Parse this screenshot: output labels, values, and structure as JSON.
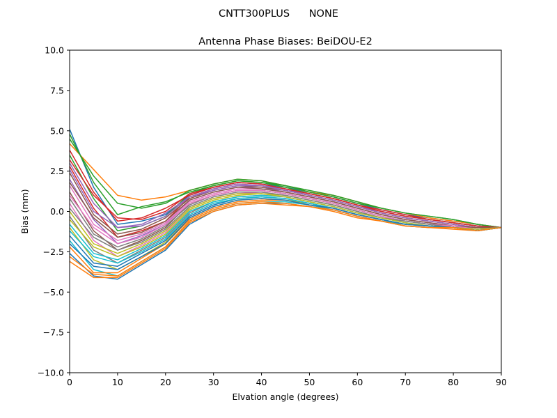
{
  "figure": {
    "suptitle": "CNTT300PLUS      NONE"
  },
  "chart_data": {
    "type": "line",
    "title": "Antenna Phase Biases: BeiDOU-E2",
    "xlabel": "Elvation angle (degrees)",
    "ylabel": "Bias (mm)",
    "xlim": [
      0,
      90
    ],
    "ylim": [
      -10,
      10
    ],
    "xticks": [
      0,
      10,
      20,
      30,
      40,
      50,
      60,
      70,
      80,
      90
    ],
    "xtick_labels": [
      "0",
      "10",
      "20",
      "30",
      "40",
      "50",
      "60",
      "70",
      "80",
      "90"
    ],
    "yticks": [
      -10,
      -7.5,
      -5,
      -2.5,
      0,
      2.5,
      5,
      7.5,
      10
    ],
    "ytick_labels": [
      "−10.0",
      "−7.5",
      "−5.0",
      "−2.5",
      "0.0",
      "2.5",
      "5.0",
      "7.5",
      "10.0"
    ],
    "grid": false,
    "legend": "none",
    "color_cycle": [
      "#1f77b4",
      "#ff7f0e",
      "#2ca02c",
      "#d62728",
      "#9467bd",
      "#8c564b",
      "#e377c2",
      "#7f7f7f",
      "#bcbd22",
      "#17becf"
    ],
    "x": [
      0,
      5,
      10,
      15,
      20,
      25,
      30,
      35,
      40,
      45,
      50,
      55,
      60,
      65,
      70,
      75,
      80,
      85,
      90
    ],
    "series": [
      {
        "values": [
          5.1,
          1.5,
          -0.8,
          -0.6,
          -0.2,
          1.0,
          1.5,
          1.8,
          1.7,
          1.5,
          1.2,
          0.9,
          0.5,
          0.1,
          -0.2,
          -0.4,
          -0.6,
          -0.8,
          -1.0
        ]
      },
      {
        "values": [
          4.2,
          2.6,
          1.0,
          0.7,
          0.9,
          1.3,
          1.7,
          2.0,
          1.9,
          1.6,
          1.2,
          1.0,
          0.6,
          0.2,
          -0.1,
          -0.4,
          -0.6,
          -0.8,
          -1.0
        ]
      },
      {
        "values": [
          3.5,
          0.8,
          -1.2,
          -0.9,
          -0.3,
          1.1,
          1.6,
          1.9,
          1.8,
          1.5,
          1.1,
          0.8,
          0.4,
          0.0,
          -0.3,
          -0.5,
          -0.7,
          -0.9,
          -1.0
        ]
      },
      {
        "values": [
          2.8,
          0.2,
          -1.6,
          -1.2,
          -0.6,
          0.9,
          1.4,
          1.7,
          1.6,
          1.3,
          1.0,
          0.7,
          0.3,
          -0.1,
          -0.4,
          -0.6,
          -0.8,
          -1.0,
          -1.0
        ]
      },
      {
        "values": [
          2.0,
          -0.5,
          -2.0,
          -1.5,
          -0.8,
          0.7,
          1.2,
          1.5,
          1.5,
          1.2,
          0.9,
          0.6,
          0.2,
          -0.2,
          -0.5,
          -0.7,
          -0.9,
          -1.0,
          -1.0
        ]
      },
      {
        "values": [
          1.2,
          -1.2,
          -2.4,
          -1.8,
          -1.0,
          0.5,
          1.0,
          1.3,
          1.3,
          1.1,
          0.8,
          0.5,
          0.1,
          -0.3,
          -0.6,
          -0.8,
          -0.9,
          -1.1,
          -1.0
        ]
      },
      {
        "values": [
          0.5,
          -1.8,
          -2.8,
          -2.1,
          -1.3,
          0.2,
          0.8,
          1.1,
          1.2,
          1.0,
          0.7,
          0.4,
          0.0,
          -0.4,
          -0.6,
          -0.8,
          -1.0,
          -1.1,
          -1.0
        ]
      },
      {
        "values": [
          -0.3,
          -2.4,
          -3.2,
          -2.4,
          -1.6,
          -0.1,
          0.6,
          0.9,
          1.0,
          0.9,
          0.6,
          0.3,
          -0.1,
          -0.4,
          -0.7,
          -0.9,
          -1.0,
          -1.1,
          -1.0
        ]
      },
      {
        "values": [
          -1.0,
          -3.0,
          -3.6,
          -2.8,
          -1.9,
          -0.4,
          0.3,
          0.7,
          0.8,
          0.7,
          0.5,
          0.2,
          -0.2,
          -0.5,
          -0.8,
          -0.9,
          -1.0,
          -1.2,
          -1.0
        ]
      },
      {
        "values": [
          -1.8,
          -3.6,
          -4.0,
          -3.1,
          -2.2,
          -0.6,
          0.1,
          0.5,
          0.6,
          0.6,
          0.4,
          0.1,
          -0.3,
          -0.6,
          -0.8,
          -0.9,
          -1.0,
          -1.2,
          -1.0
        ]
      },
      {
        "values": [
          -2.6,
          -4.0,
          -4.2,
          -3.3,
          -2.4,
          -0.8,
          0.0,
          0.4,
          0.5,
          0.5,
          0.3,
          0.1,
          -0.3,
          -0.6,
          -0.9,
          -1.0,
          -1.0,
          -1.2,
          -1.0
        ]
      },
      {
        "values": [
          -3.1,
          -4.1,
          -4.1,
          -3.2,
          -2.3,
          -0.7,
          0.0,
          0.4,
          0.5,
          0.4,
          0.3,
          0.0,
          -0.4,
          -0.6,
          -0.9,
          -1.0,
          -1.1,
          -1.2,
          -1.0
        ]
      },
      {
        "values": [
          4.8,
          1.8,
          -0.2,
          0.3,
          0.6,
          1.2,
          1.6,
          1.9,
          1.8,
          1.6,
          1.2,
          0.9,
          0.5,
          0.2,
          -0.1,
          -0.3,
          -0.5,
          -0.8,
          -1.0
        ]
      },
      {
        "values": [
          3.8,
          1.2,
          -0.6,
          -0.4,
          0.2,
          1.0,
          1.5,
          1.8,
          1.7,
          1.4,
          1.1,
          0.8,
          0.4,
          0.1,
          -0.2,
          -0.5,
          -0.7,
          -0.9,
          -1.0
        ]
      },
      {
        "values": [
          3.0,
          0.5,
          -1.0,
          -0.8,
          -0.1,
          0.9,
          1.4,
          1.7,
          1.6,
          1.4,
          1.0,
          0.7,
          0.3,
          0.0,
          -0.3,
          -0.5,
          -0.7,
          -0.9,
          -1.0
        ]
      },
      {
        "values": [
          2.4,
          -0.2,
          -1.4,
          -1.1,
          -0.4,
          0.8,
          1.3,
          1.6,
          1.5,
          1.3,
          1.0,
          0.7,
          0.3,
          -0.1,
          -0.4,
          -0.6,
          -0.8,
          -1.0,
          -1.0
        ]
      },
      {
        "values": [
          1.6,
          -0.8,
          -1.8,
          -1.4,
          -0.7,
          0.6,
          1.1,
          1.4,
          1.4,
          1.2,
          0.9,
          0.6,
          0.2,
          -0.2,
          -0.5,
          -0.7,
          -0.9,
          -1.0,
          -1.0
        ]
      },
      {
        "values": [
          0.8,
          -1.4,
          -2.2,
          -1.7,
          -0.9,
          0.4,
          1.0,
          1.3,
          1.3,
          1.1,
          0.8,
          0.5,
          0.1,
          -0.3,
          -0.6,
          -0.8,
          -0.9,
          -1.1,
          -1.0
        ]
      },
      {
        "values": [
          0.0,
          -2.0,
          -2.6,
          -2.0,
          -1.2,
          0.2,
          0.8,
          1.1,
          1.1,
          1.0,
          0.7,
          0.4,
          0.0,
          -0.4,
          -0.6,
          -0.8,
          -1.0,
          -1.1,
          -1.0
        ]
      },
      {
        "values": [
          -0.8,
          -2.6,
          -3.0,
          -2.3,
          -1.5,
          0.0,
          0.6,
          0.9,
          1.0,
          0.9,
          0.6,
          0.3,
          -0.1,
          -0.4,
          -0.7,
          -0.9,
          -1.0,
          -1.1,
          -1.0
        ]
      },
      {
        "values": [
          -1.5,
          -3.2,
          -3.4,
          -2.6,
          -1.8,
          -0.3,
          0.4,
          0.8,
          0.9,
          0.8,
          0.5,
          0.2,
          -0.2,
          -0.5,
          -0.8,
          -0.9,
          -1.0,
          -1.2,
          -1.0
        ]
      },
      {
        "values": [
          -2.2,
          -3.8,
          -3.8,
          -2.9,
          -2.0,
          -0.5,
          0.2,
          0.6,
          0.7,
          0.7,
          0.4,
          0.2,
          -0.2,
          -0.5,
          -0.8,
          -0.9,
          -1.0,
          -1.2,
          -1.0
        ]
      },
      {
        "values": [
          4.5,
          2.2,
          0.5,
          0.2,
          0.5,
          1.3,
          1.7,
          2.0,
          1.9,
          1.6,
          1.3,
          1.0,
          0.6,
          0.2,
          -0.1,
          -0.3,
          -0.5,
          -0.8,
          -1.0
        ]
      },
      {
        "values": [
          3.2,
          1.0,
          -0.4,
          -0.5,
          0.0,
          1.1,
          1.5,
          1.8,
          1.7,
          1.4,
          1.1,
          0.8,
          0.4,
          0.0,
          -0.3,
          -0.5,
          -0.7,
          -0.9,
          -1.0
        ]
      },
      {
        "values": [
          2.6,
          0.0,
          -1.0,
          -0.9,
          -0.3,
          0.9,
          1.3,
          1.6,
          1.6,
          1.3,
          1.0,
          0.7,
          0.3,
          -0.1,
          -0.4,
          -0.6,
          -0.8,
          -1.0,
          -1.0
        ]
      },
      {
        "values": [
          1.8,
          -0.4,
          -1.6,
          -1.3,
          -0.6,
          0.7,
          1.2,
          1.5,
          1.4,
          1.2,
          0.9,
          0.6,
          0.2,
          -0.2,
          -0.5,
          -0.7,
          -0.9,
          -1.0,
          -1.0
        ]
      },
      {
        "values": [
          1.0,
          -1.0,
          -2.0,
          -1.6,
          -0.8,
          0.5,
          1.0,
          1.3,
          1.3,
          1.1,
          0.8,
          0.5,
          0.1,
          -0.3,
          -0.6,
          -0.8,
          -0.9,
          -1.1,
          -1.0
        ]
      },
      {
        "values": [
          0.2,
          -1.6,
          -2.4,
          -1.9,
          -1.1,
          0.3,
          0.9,
          1.2,
          1.2,
          1.0,
          0.7,
          0.4,
          0.0,
          -0.4,
          -0.6,
          -0.8,
          -1.0,
          -1.1,
          -1.0
        ]
      },
      {
        "values": [
          -0.5,
          -2.2,
          -2.8,
          -2.2,
          -1.4,
          0.1,
          0.7,
          1.0,
          1.1,
          0.9,
          0.6,
          0.3,
          -0.1,
          -0.4,
          -0.7,
          -0.9,
          -1.0,
          -1.1,
          -1.0
        ]
      },
      {
        "values": [
          -1.2,
          -2.8,
          -3.2,
          -2.5,
          -1.7,
          -0.2,
          0.5,
          0.8,
          0.9,
          0.8,
          0.5,
          0.2,
          -0.2,
          -0.5,
          -0.8,
          -0.9,
          -1.0,
          -1.2,
          -1.0
        ]
      },
      {
        "values": [
          -2.0,
          -3.4,
          -3.6,
          -2.8,
          -2.0,
          -0.4,
          0.3,
          0.7,
          0.8,
          0.7,
          0.4,
          0.2,
          -0.2,
          -0.5,
          -0.8,
          -0.9,
          -1.0,
          -1.2,
          -1.0
        ]
      },
      {
        "values": [
          -2.8,
          -3.9,
          -4.0,
          -3.1,
          -2.2,
          -0.6,
          0.1,
          0.5,
          0.6,
          0.5,
          0.3,
          0.1,
          -0.3,
          -0.6,
          -0.9,
          -1.0,
          -1.0,
          -1.2,
          -1.0
        ]
      }
    ]
  }
}
